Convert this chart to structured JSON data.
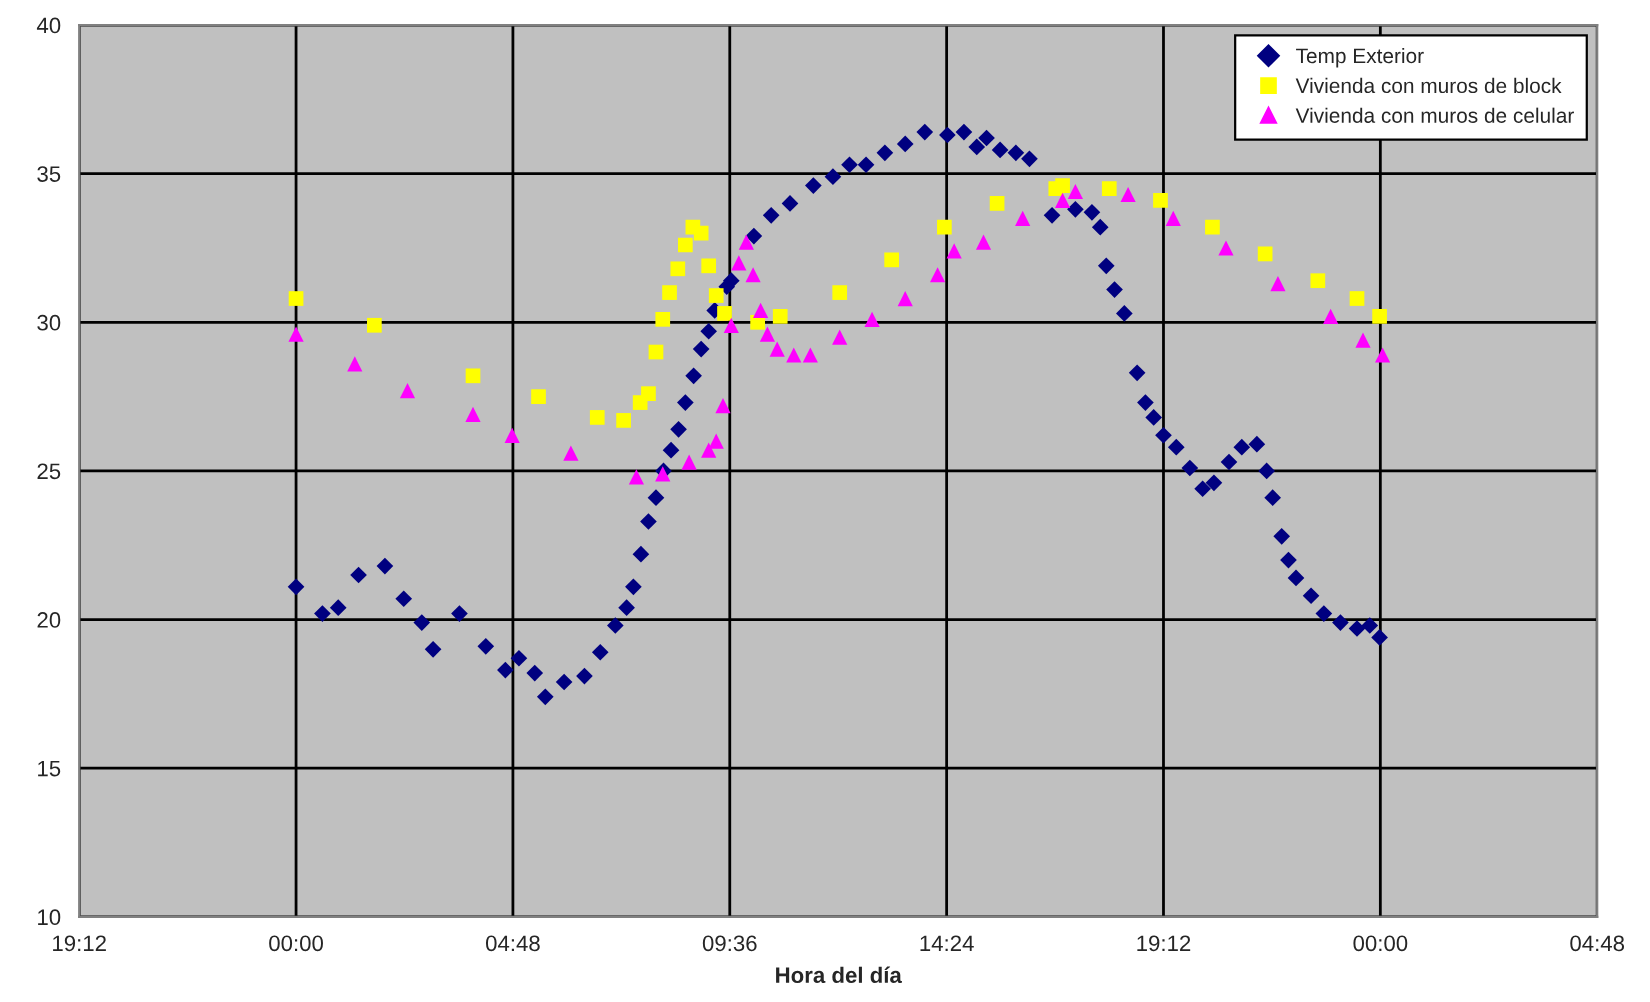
{
  "chart_data": {
    "type": "scatter",
    "xlabel": "Hora del día",
    "xlim": [
      "2000-01-01T19:12",
      "2000-01-03T04:48"
    ],
    "xticks": [
      {
        "value": "2000-01-01T19:12",
        "label": "19:12"
      },
      {
        "value": "2000-01-02T00:00",
        "label": "00:00"
      },
      {
        "value": "2000-01-02T04:48",
        "label": "04:48"
      },
      {
        "value": "2000-01-02T09:36",
        "label": "09:36"
      },
      {
        "value": "2000-01-02T14:24",
        "label": "14:24"
      },
      {
        "value": "2000-01-02T19:12",
        "label": "19:12"
      },
      {
        "value": "2000-01-03T00:00",
        "label": "00:00"
      },
      {
        "value": "2000-01-03T04:48",
        "label": "04:48"
      }
    ],
    "ylim": [
      10,
      40
    ],
    "yticks": [
      10,
      15,
      20,
      25,
      30,
      35,
      40
    ],
    "grid": true,
    "legend": "top right",
    "series": [
      {
        "name": "Temp Exterior",
        "color": "#000080",
        "marker": "diamond",
        "x": [
          "2000-01-02T00:00",
          "2000-01-02T00:35",
          "2000-01-02T00:56",
          "2000-01-02T01:23",
          "2000-01-02T01:58",
          "2000-01-02T02:23",
          "2000-01-02T02:47",
          "2000-01-02T03:02",
          "2000-01-02T03:37",
          "2000-01-02T04:12",
          "2000-01-02T04:38",
          "2000-01-02T04:56",
          "2000-01-02T05:17",
          "2000-01-02T05:31",
          "2000-01-02T05:56",
          "2000-01-02T06:23",
          "2000-01-02T06:44",
          "2000-01-02T07:04",
          "2000-01-02T07:19",
          "2000-01-02T07:28",
          "2000-01-02T07:38",
          "2000-01-02T07:48",
          "2000-01-02T07:58",
          "2000-01-02T08:08",
          "2000-01-02T08:18",
          "2000-01-02T08:28",
          "2000-01-02T08:37",
          "2000-01-02T08:48",
          "2000-01-02T08:58",
          "2000-01-02T09:08",
          "2000-01-02T09:16",
          "2000-01-02T09:32",
          "2000-01-02T09:38",
          "2000-01-02T10:08",
          "2000-01-02T10:31",
          "2000-01-02T10:56",
          "2000-01-02T11:27",
          "2000-01-02T11:53",
          "2000-01-02T12:15",
          "2000-01-02T12:37",
          "2000-01-02T13:02",
          "2000-01-02T13:29",
          "2000-01-02T13:55",
          "2000-01-02T14:25",
          "2000-01-02T14:47",
          "2000-01-02T15:04",
          "2000-01-02T15:17",
          "2000-01-02T15:35",
          "2000-01-02T15:56",
          "2000-01-02T16:14",
          "2000-01-02T16:44",
          "2000-01-02T17:15",
          "2000-01-02T17:37",
          "2000-01-02T17:48",
          "2000-01-02T17:56",
          "2000-01-02T18:07",
          "2000-01-02T18:20",
          "2000-01-02T18:37",
          "2000-01-02T18:48",
          "2000-01-02T18:59",
          "2000-01-02T19:12",
          "2000-01-02T19:29",
          "2000-01-02T19:47",
          "2000-01-02T20:04",
          "2000-01-02T20:19",
          "2000-01-02T20:39",
          "2000-01-02T20:56",
          "2000-01-02T21:16",
          "2000-01-02T21:29",
          "2000-01-02T21:37",
          "2000-01-02T21:49",
          "2000-01-02T21:58",
          "2000-01-02T22:08",
          "2000-01-02T22:28",
          "2000-01-02T22:45",
          "2000-01-02T23:07",
          "2000-01-02T23:29",
          "2000-01-02T23:46",
          "2000-01-02T23:59"
        ],
        "values": [
          21.1,
          20.2,
          20.4,
          21.5,
          21.8,
          20.7,
          19.9,
          19.0,
          20.2,
          19.1,
          18.3,
          18.7,
          18.2,
          17.4,
          17.9,
          18.1,
          18.9,
          19.8,
          20.4,
          21.1,
          22.2,
          23.3,
          24.1,
          25.0,
          25.7,
          26.4,
          27.3,
          28.2,
          29.1,
          29.7,
          30.4,
          31.2,
          31.4,
          32.9,
          33.6,
          34.0,
          34.6,
          34.9,
          35.3,
          35.3,
          35.7,
          36.0,
          36.4,
          36.3,
          36.4,
          35.9,
          36.2,
          35.8,
          35.7,
          35.5,
          33.6,
          33.8,
          33.7,
          33.2,
          31.9,
          31.1,
          30.3,
          28.3,
          27.3,
          26.8,
          26.2,
          25.8,
          25.1,
          24.4,
          24.6,
          25.3,
          25.8,
          25.9,
          25.0,
          24.1,
          22.8,
          22.0,
          21.4,
          20.8,
          20.2,
          19.9,
          19.7,
          19.8,
          19.4
        ]
      },
      {
        "name": "Vivienda con muros de block",
        "color": "#ffff00",
        "marker": "square",
        "x": [
          "2000-01-02T00:00",
          "2000-01-02T01:44",
          "2000-01-02T03:55",
          "2000-01-02T05:22",
          "2000-01-02T06:40",
          "2000-01-02T07:15",
          "2000-01-02T07:37",
          "2000-01-02T07:48",
          "2000-01-02T07:58",
          "2000-01-02T08:07",
          "2000-01-02T08:16",
          "2000-01-02T08:27",
          "2000-01-02T08:37",
          "2000-01-02T08:47",
          "2000-01-02T08:58",
          "2000-01-02T09:08",
          "2000-01-02T09:18",
          "2000-01-02T09:29",
          "2000-01-02T10:13",
          "2000-01-02T10:43",
          "2000-01-02T12:02",
          "2000-01-02T13:11",
          "2000-01-02T14:21",
          "2000-01-02T15:31",
          "2000-01-02T16:49",
          "2000-01-02T16:58",
          "2000-01-02T18:00",
          "2000-01-02T19:08",
          "2000-01-02T20:17",
          "2000-01-02T21:27",
          "2000-01-02T22:37",
          "2000-01-02T23:29",
          "2000-01-02T23:59"
        ],
        "values": [
          30.8,
          29.9,
          28.2,
          27.5,
          26.8,
          26.7,
          27.3,
          27.6,
          29.0,
          30.1,
          31.0,
          31.8,
          32.6,
          33.2,
          33.0,
          31.9,
          30.9,
          30.3,
          30.0,
          30.2,
          31.0,
          32.1,
          33.2,
          34.0,
          34.5,
          34.6,
          34.5,
          34.1,
          33.2,
          32.3,
          31.4,
          30.8,
          30.2
        ]
      },
      {
        "name": "Vivienda con muros de celular",
        "color": "#ff00ff",
        "marker": "triangle",
        "x": [
          "2000-01-02T00:00",
          "2000-01-02T01:18",
          "2000-01-02T02:28",
          "2000-01-02T03:55",
          "2000-01-02T04:47",
          "2000-01-02T06:05",
          "2000-01-02T07:32",
          "2000-01-02T08:07",
          "2000-01-02T08:42",
          "2000-01-02T09:08",
          "2000-01-02T09:18",
          "2000-01-02T09:27",
          "2000-01-02T09:38",
          "2000-01-02T09:48",
          "2000-01-02T09:58",
          "2000-01-02T10:07",
          "2000-01-02T10:17",
          "2000-01-02T10:26",
          "2000-01-02T10:39",
          "2000-01-02T11:01",
          "2000-01-02T11:23",
          "2000-01-02T12:02",
          "2000-01-02T12:45",
          "2000-01-02T13:29",
          "2000-01-02T14:12",
          "2000-01-02T14:34",
          "2000-01-02T15:13",
          "2000-01-02T16:05",
          "2000-01-02T16:58",
          "2000-01-02T17:15",
          "2000-01-02T18:25",
          "2000-01-02T19:25",
          "2000-01-02T20:35",
          "2000-01-02T21:44",
          "2000-01-02T22:54",
          "2000-01-02T23:37",
          "2000-01-03T00:03"
        ],
        "values": [
          29.6,
          28.6,
          27.7,
          26.9,
          26.2,
          25.6,
          24.8,
          24.9,
          25.3,
          25.7,
          26.0,
          27.2,
          29.9,
          32.0,
          32.7,
          31.6,
          30.4,
          29.6,
          29.1,
          28.9,
          28.9,
          29.5,
          30.1,
          30.8,
          31.6,
          32.4,
          32.7,
          33.5,
          34.1,
          34.4,
          34.3,
          33.5,
          32.5,
          31.3,
          30.2,
          29.4,
          28.9
        ]
      }
    ]
  }
}
